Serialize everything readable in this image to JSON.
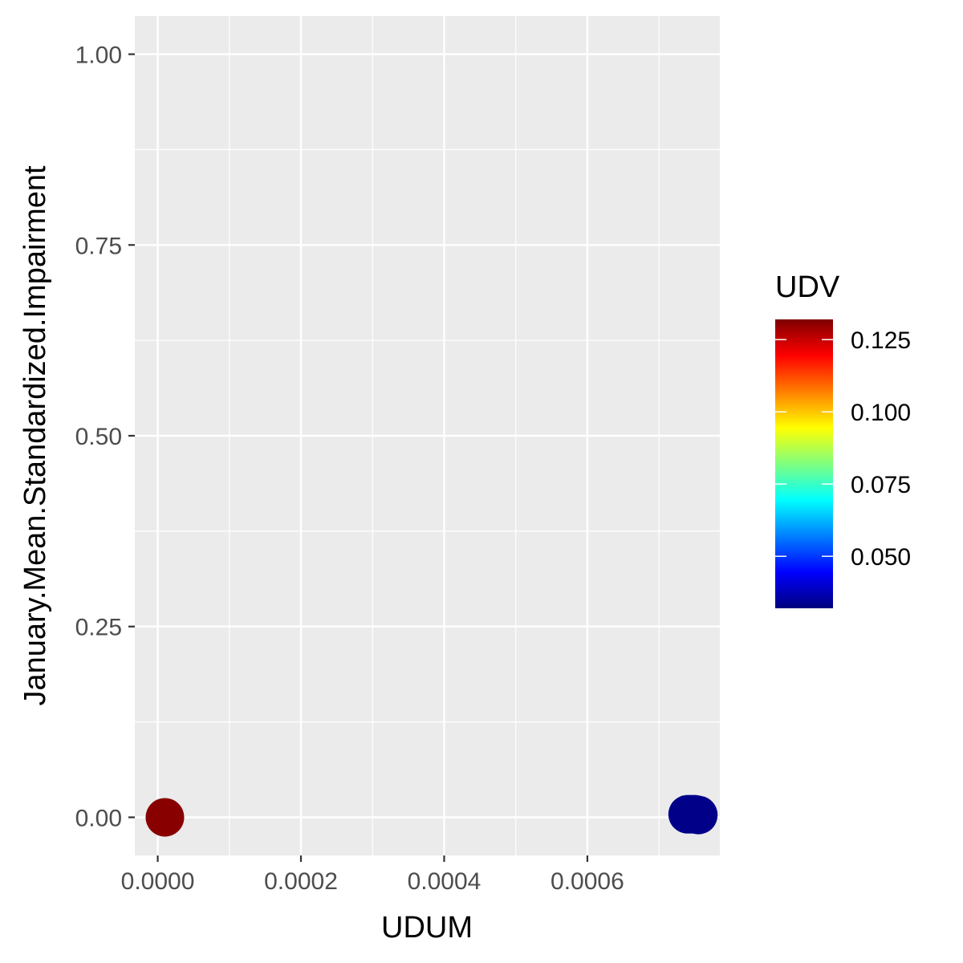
{
  "chart_data": {
    "type": "scatter",
    "title": "",
    "xlabel": "UDUM",
    "ylabel": "January.Mean.Standardized.Impairment",
    "xlim": [
      -3.2e-05,
      0.000785
    ],
    "ylim": [
      -0.05,
      1.05
    ],
    "x_ticks": [
      0.0,
      0.0002,
      0.0004,
      0.0006
    ],
    "x_tick_labels": [
      "0.0000",
      "0.0002",
      "0.0004",
      "0.0006"
    ],
    "y_ticks": [
      0.0,
      0.25,
      0.5,
      0.75,
      1.0
    ],
    "y_tick_labels": [
      "0.00",
      "0.25",
      "0.50",
      "0.75",
      "1.00"
    ],
    "grid": true,
    "panel_background": "#ebebeb",
    "points": [
      {
        "x": 1e-05,
        "y": 0.0,
        "color_value": 0.131
      },
      {
        "x": 0.00074,
        "y": 0.004,
        "color_value": 0.033
      },
      {
        "x": 0.000745,
        "y": 0.004,
        "color_value": 0.033
      },
      {
        "x": 0.00075,
        "y": 0.004,
        "color_value": 0.033
      },
      {
        "x": 0.000755,
        "y": 0.003,
        "color_value": 0.033
      }
    ],
    "legend": {
      "title": "UDV",
      "placement": "right",
      "range": [
        0.032,
        0.132
      ],
      "ticks": [
        0.05,
        0.075,
        0.1,
        0.125
      ],
      "tick_labels": [
        "0.050",
        "0.075",
        "0.100",
        "0.125"
      ],
      "colormap": [
        "#00007f",
        "#0000ff",
        "#007fff",
        "#00ffff",
        "#7fff7f",
        "#ffff00",
        "#ff7f00",
        "#ff0000",
        "#7f0000"
      ]
    }
  }
}
